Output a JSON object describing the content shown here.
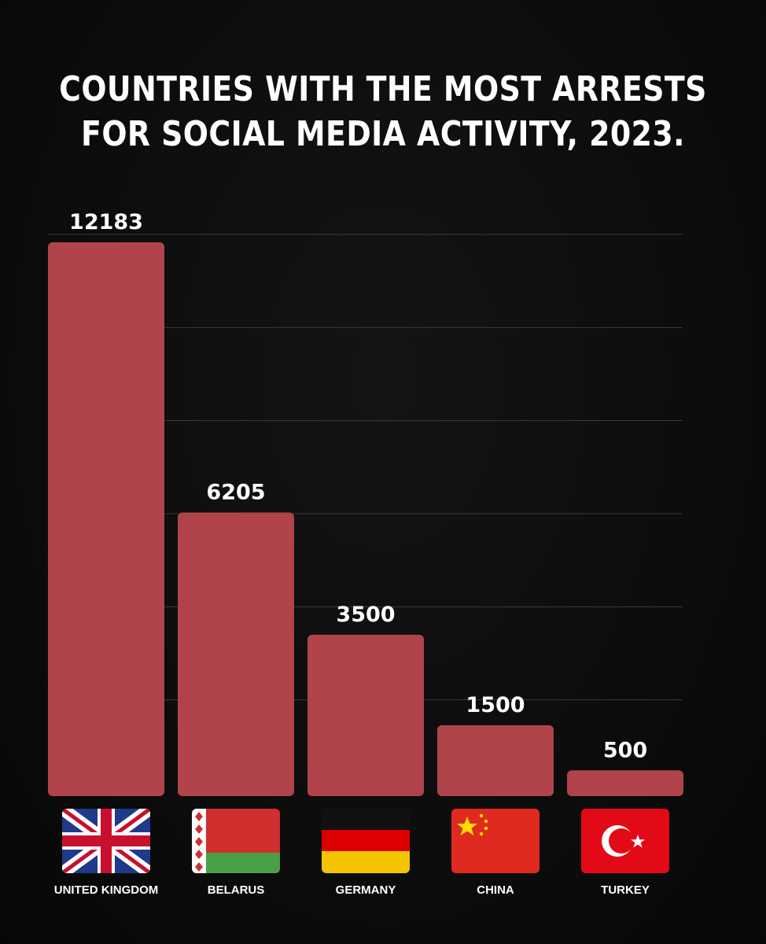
{
  "colors": {
    "background": "#0b0b0b",
    "bar": "#b1434b",
    "gridline": "#3a3a3a",
    "text": "#ffffff"
  },
  "chart_data": {
    "type": "bar",
    "title_lines": [
      "COUNTRIES WITH THE MOST ARRESTS",
      "FOR SOCIAL MEDIA ACTIVITY, 2023."
    ],
    "categories": [
      "UNITED KINGDOM",
      "BELARUS",
      "GERMANY",
      "CHINA",
      "TURKEY"
    ],
    "values": [
      12183,
      6205,
      3500,
      1500,
      500
    ],
    "value_labels": [
      "12183",
      "6205",
      "3500",
      "1500",
      "500"
    ],
    "flags": [
      "uk-flag-icon",
      "belarus-flag-icon",
      "germany-flag-icon",
      "china-flag-icon",
      "turkey-flag-icon"
    ],
    "xlabel": "",
    "ylabel": "",
    "ylim": [
      0,
      12183
    ],
    "grid": true,
    "legend": "none"
  }
}
